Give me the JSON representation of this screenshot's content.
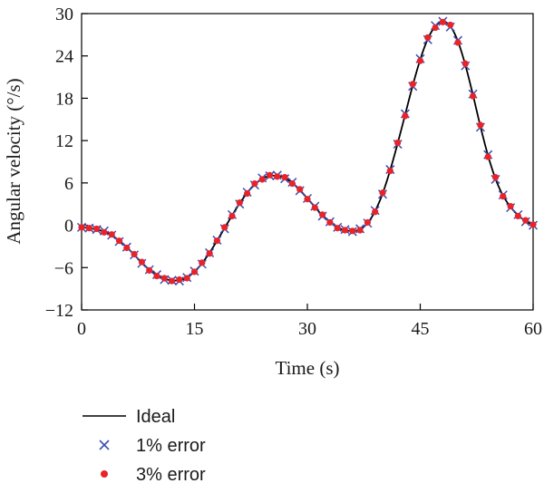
{
  "chart_data": {
    "type": "line",
    "title": "",
    "xlabel": "Time (s)",
    "ylabel": "Angular velocity (°/s)",
    "xlim": [
      0,
      60
    ],
    "ylim": [
      -12,
      30
    ],
    "xticks": [
      0,
      15,
      30,
      45,
      60
    ],
    "yticks": [
      -12,
      -6,
      0,
      6,
      12,
      18,
      24,
      30
    ],
    "xtick_labels": [
      "0",
      "15",
      "30",
      "45",
      "60"
    ],
    "ytick_labels": [
      "−12",
      "−6",
      "0",
      "6",
      "12",
      "18",
      "24",
      "30"
    ],
    "grid": false,
    "legend_position": "bottom-left",
    "series": [
      {
        "name": "Ideal",
        "kind": "line",
        "color": "#000000",
        "x": [
          0,
          1,
          2,
          3,
          4,
          5,
          6,
          7,
          8,
          9,
          10,
          11,
          12,
          13,
          14,
          15,
          16,
          17,
          18,
          19,
          20,
          21,
          22,
          23,
          24,
          25,
          26,
          27,
          28,
          29,
          30,
          31,
          32,
          33,
          34,
          35,
          36,
          37,
          38,
          39,
          40,
          41,
          42,
          43,
          44,
          45,
          46,
          47,
          48,
          49,
          50,
          51,
          52,
          53,
          54,
          55,
          56,
          57,
          58,
          59,
          60
        ],
        "y": [
          -0.3,
          -0.4,
          -0.6,
          -0.9,
          -1.4,
          -2.2,
          -3.1,
          -4.2,
          -5.3,
          -6.3,
          -7.1,
          -7.6,
          -7.8,
          -7.8,
          -7.4,
          -6.6,
          -5.4,
          -3.9,
          -2.2,
          -0.4,
          1.4,
          3.1,
          4.6,
          5.8,
          6.6,
          7.0,
          7.0,
          6.7,
          6.0,
          5.0,
          3.8,
          2.6,
          1.4,
          0.5,
          -0.3,
          -0.7,
          -0.8,
          -0.6,
          0.3,
          2.0,
          4.5,
          7.8,
          11.6,
          15.7,
          19.8,
          23.5,
          26.4,
          28.2,
          28.9,
          28.2,
          26.1,
          22.7,
          18.5,
          14.0,
          9.9,
          6.6,
          4.2,
          2.6,
          1.4,
          0.6,
          0.0
        ]
      },
      {
        "name": "1% error",
        "kind": "scatter",
        "marker": "x",
        "color": "#3a4fb0",
        "x": [
          0,
          1,
          2,
          3,
          4,
          5,
          6,
          7,
          8,
          9,
          10,
          11,
          12,
          13,
          14,
          15,
          16,
          17,
          18,
          19,
          20,
          21,
          22,
          23,
          24,
          25,
          26,
          27,
          28,
          29,
          30,
          31,
          32,
          33,
          34,
          35,
          36,
          37,
          38,
          39,
          40,
          41,
          42,
          43,
          44,
          45,
          46,
          47,
          48,
          49,
          50,
          51,
          52,
          53,
          54,
          55,
          56,
          57,
          58,
          59,
          60
        ],
        "y": [
          -0.3,
          -0.4,
          -0.6,
          -0.8,
          -1.4,
          -2.3,
          -3.1,
          -4.2,
          -5.4,
          -6.3,
          -7.0,
          -7.7,
          -7.8,
          -7.9,
          -7.4,
          -6.5,
          -5.5,
          -3.9,
          -2.1,
          -0.5,
          1.5,
          3.0,
          4.7,
          5.7,
          6.7,
          7.0,
          7.1,
          6.6,
          6.1,
          4.9,
          3.8,
          2.7,
          1.3,
          0.5,
          -0.3,
          -0.6,
          -0.9,
          -0.5,
          0.3,
          2.1,
          4.4,
          7.9,
          11.5,
          15.8,
          19.7,
          23.6,
          26.3,
          28.3,
          28.9,
          28.1,
          26.2,
          22.6,
          18.6,
          13.9,
          10.0,
          6.5,
          4.3,
          2.5,
          1.5,
          0.5,
          0.0
        ]
      },
      {
        "name": "3% error",
        "kind": "scatter",
        "marker": "dot",
        "color": "#e8232a",
        "x": [
          0,
          1,
          2,
          3,
          4,
          5,
          6,
          7,
          8,
          9,
          10,
          11,
          12,
          13,
          14,
          15,
          16,
          17,
          18,
          19,
          20,
          21,
          22,
          23,
          24,
          25,
          26,
          27,
          28,
          29,
          30,
          31,
          32,
          33,
          34,
          35,
          36,
          37,
          38,
          39,
          40,
          41,
          42,
          43,
          44,
          45,
          46,
          47,
          48,
          49,
          50,
          51,
          52,
          53,
          54,
          55,
          56,
          57,
          58,
          59,
          60
        ],
        "y": [
          -0.3,
          -0.4,
          -0.5,
          -1.0,
          -1.3,
          -2.2,
          -3.2,
          -4.1,
          -5.2,
          -6.4,
          -7.2,
          -7.5,
          -7.9,
          -7.7,
          -7.5,
          -6.6,
          -5.3,
          -4.0,
          -2.2,
          -0.3,
          1.3,
          3.2,
          4.5,
          5.9,
          6.5,
          7.1,
          6.9,
          6.8,
          5.9,
          5.1,
          3.7,
          2.5,
          1.5,
          0.4,
          -0.4,
          -0.7,
          -0.8,
          -0.7,
          0.4,
          1.9,
          4.6,
          7.7,
          11.7,
          15.5,
          20.0,
          23.3,
          26.6,
          28.0,
          28.8,
          28.4,
          25.9,
          22.9,
          18.3,
          14.2,
          9.7,
          6.8,
          4.1,
          2.7,
          1.3,
          0.7,
          0.1
        ]
      }
    ],
    "legend": [
      {
        "label": "Ideal"
      },
      {
        "label": "1% error"
      },
      {
        "label": "3% error"
      }
    ]
  }
}
